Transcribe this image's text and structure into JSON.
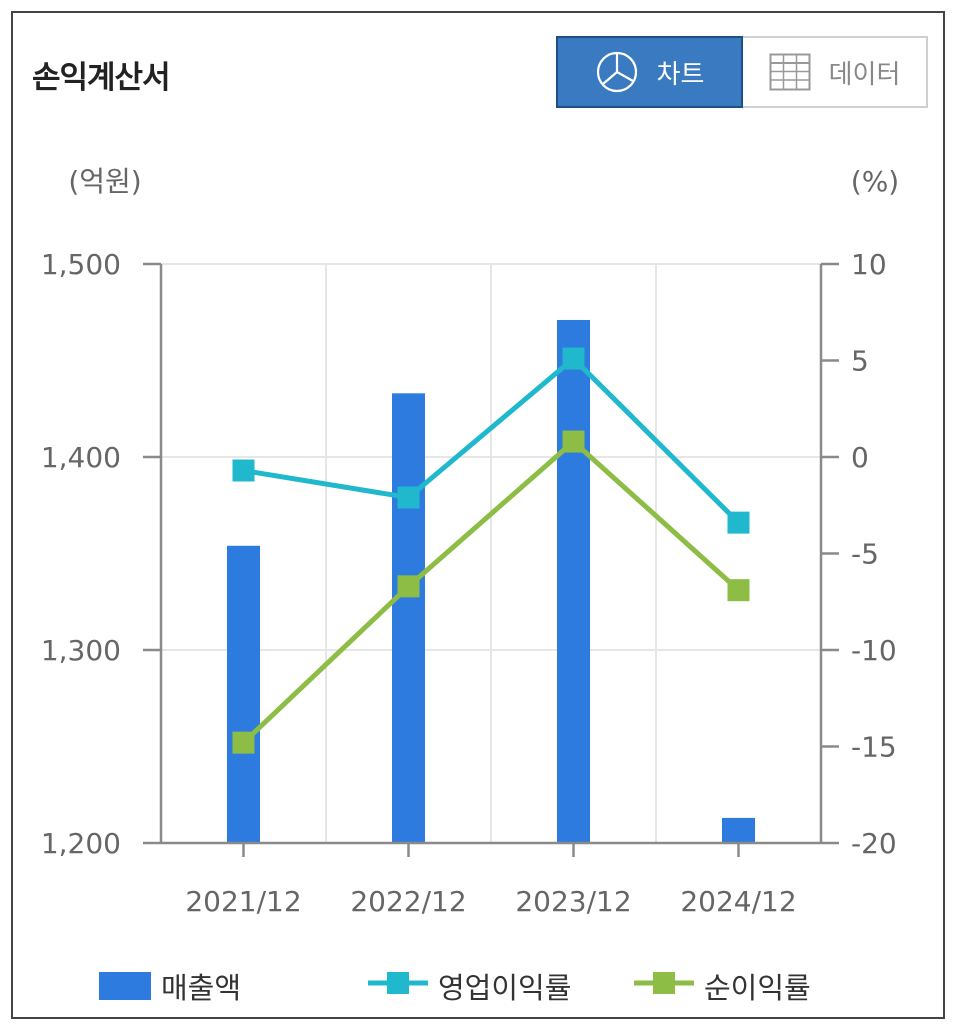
{
  "panel": {
    "title": "손익계산서",
    "toggle": {
      "chart_label": "차트",
      "data_label": "데이터",
      "active": "chart",
      "chart_icon": "pie-chart-icon",
      "data_icon": "table-grid-icon"
    }
  },
  "colors": {
    "bar": "#2e7be0",
    "operating_margin": "#20b8cc",
    "net_margin": "#8dbd45",
    "grid": "#e6e6e6",
    "axis": "#8a8a8a",
    "tick_text": "#666666"
  },
  "chart_data": {
    "type": "bar",
    "categories": [
      "2021/12",
      "2022/12",
      "2023/12",
      "2024/12"
    ],
    "left_axis": {
      "unit_label": "(억원)",
      "ylim": [
        1200,
        1500
      ],
      "ticks": [
        1200,
        1300,
        1400,
        1500
      ],
      "tick_labels": [
        "1,200",
        "1,300",
        "1,400",
        "1,500"
      ]
    },
    "right_axis": {
      "unit_label": "(%)",
      "ylim": [
        -20,
        10
      ],
      "ticks": [
        -20,
        -15,
        -10,
        -5,
        0,
        5,
        10
      ],
      "tick_labels": [
        "-20",
        "-15",
        "-10",
        "-5",
        "0",
        "5",
        "10"
      ]
    },
    "series": [
      {
        "name": "매출액",
        "type": "bar",
        "axis": "left",
        "values": [
          1354,
          1433,
          1471,
          1213
        ]
      },
      {
        "name": "영업이익률",
        "type": "line",
        "axis": "right",
        "values": [
          -0.7,
          -2.1,
          5.1,
          -3.4
        ]
      },
      {
        "name": "순이익률",
        "type": "line",
        "axis": "right",
        "values": [
          -14.8,
          -6.7,
          0.8,
          -6.9
        ]
      }
    ],
    "grid": true,
    "legend": "bottom"
  }
}
